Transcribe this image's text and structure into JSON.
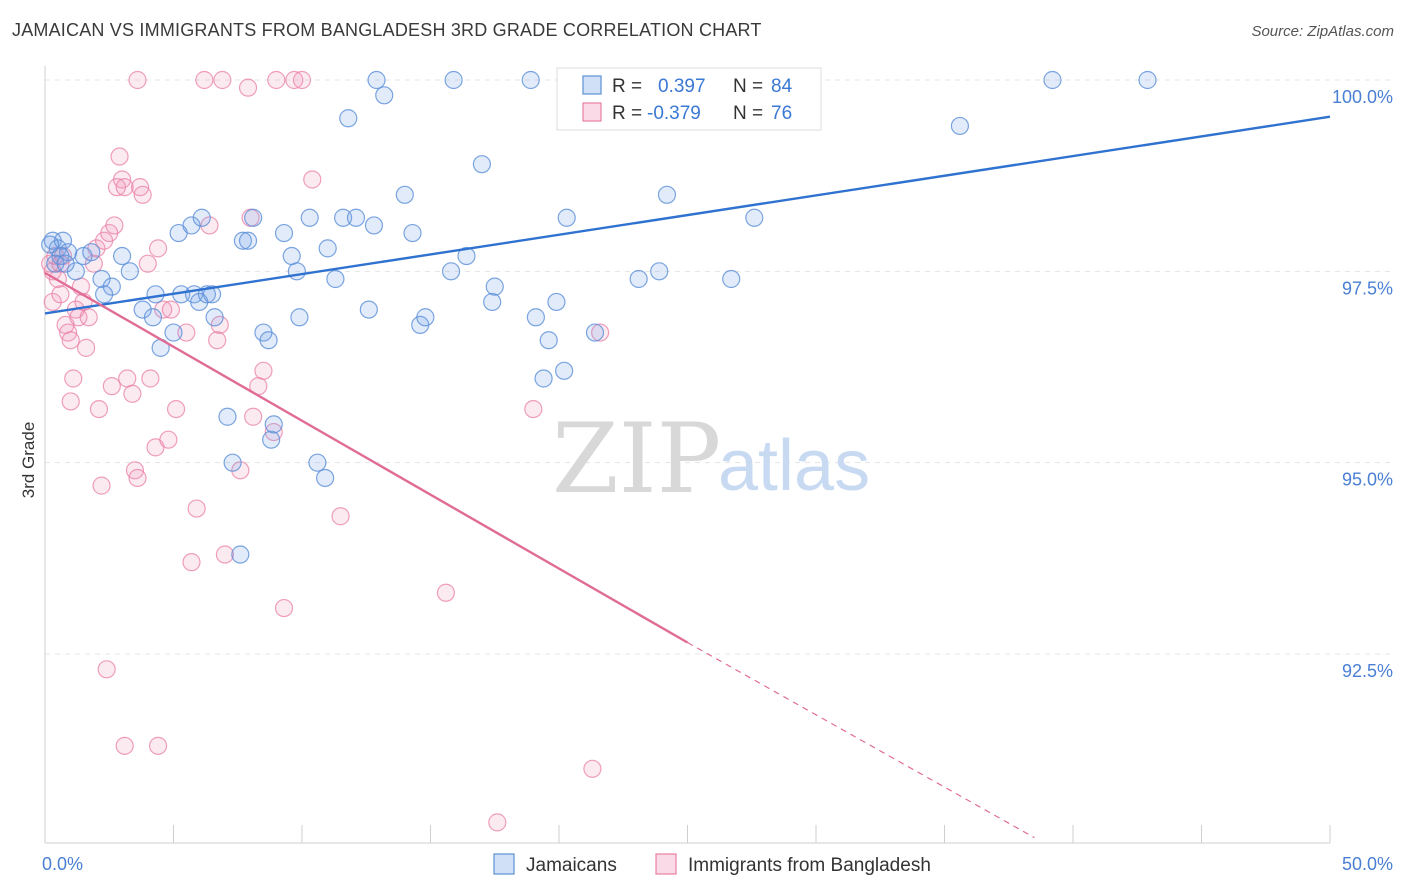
{
  "title": "JAMAICAN VS IMMIGRANTS FROM BANGLADESH 3RD GRADE CORRELATION CHART",
  "source": "Source: ZipAtlas.com",
  "watermark": {
    "zip": "ZIP",
    "atlas": "atlas"
  },
  "colors": {
    "blue": "#5b8fd8",
    "blue_fill": "rgba(120,165,230,0.22)",
    "blue_line": "#2f72cf",
    "pink": "#e97fa5",
    "pink_fill": "rgba(240,150,185,0.20)",
    "pink_line": "#e06c96",
    "grid": "#e4e4e4",
    "tick_text": "#4a7fd4"
  },
  "legend_top": {
    "rows": [
      {
        "r_label": "R =",
        "r_value": "0.397",
        "n_label": "N =",
        "n_value": "84"
      },
      {
        "r_label": "R =",
        "r_value": "-0.379",
        "n_label": "N =",
        "n_value": "76"
      }
    ]
  },
  "legend_bottom": {
    "series1": "Jamaicans",
    "series2": "Immigrants from Bangladesh"
  },
  "chart_data": {
    "type": "scatter",
    "title": "JAMAICAN VS IMMIGRANTS FROM BANGLADESH 3RD GRADE CORRELATION CHART",
    "xlabel": "",
    "ylabel": "3rd Grade",
    "xlim": [
      0,
      50
    ],
    "ylim": [
      90.1,
      100.2
    ],
    "x_tick_labels": [
      "0.0%",
      "50.0%"
    ],
    "y_ticks": [
      92.5,
      95.0,
      97.5,
      100.0
    ],
    "y_tick_labels": [
      "92.5%",
      "95.0%",
      "97.5%",
      "100.0%"
    ],
    "grid": true,
    "series": [
      {
        "name": "Jamaicans",
        "r": 0.397,
        "n": 84,
        "trend": {
          "x": [
            0,
            50
          ],
          "y": [
            96.95,
            99.52
          ]
        },
        "points": [
          [
            0.3,
            97.9
          ],
          [
            0.5,
            97.8
          ],
          [
            0.7,
            97.9
          ],
          [
            0.9,
            97.75
          ],
          [
            0.6,
            97.7
          ],
          [
            0.4,
            97.6
          ],
          [
            1.2,
            97.5
          ],
          [
            1.5,
            97.7
          ],
          [
            1.8,
            97.75
          ],
          [
            2.2,
            97.4
          ],
          [
            2.6,
            97.3
          ],
          [
            2.3,
            97.2
          ],
          [
            3.0,
            97.7
          ],
          [
            3.3,
            97.5
          ],
          [
            3.8,
            97.0
          ],
          [
            4.2,
            96.9
          ],
          [
            4.5,
            96.5
          ],
          [
            5.0,
            96.7
          ],
          [
            4.3,
            97.2
          ],
          [
            5.3,
            97.2
          ],
          [
            5.8,
            97.2
          ],
          [
            6.0,
            97.1
          ],
          [
            5.2,
            98.0
          ],
          [
            5.7,
            98.1
          ],
          [
            6.1,
            98.2
          ],
          [
            6.6,
            96.9
          ],
          [
            6.3,
            97.2
          ],
          [
            6.5,
            97.2
          ],
          [
            7.1,
            95.6
          ],
          [
            7.3,
            95.0
          ],
          [
            7.6,
            93.8
          ],
          [
            7.7,
            97.9
          ],
          [
            8.1,
            98.2
          ],
          [
            7.9,
            97.9
          ],
          [
            8.5,
            96.7
          ],
          [
            8.7,
            96.6
          ],
          [
            8.8,
            95.3
          ],
          [
            8.9,
            95.5
          ],
          [
            9.3,
            98.0
          ],
          [
            9.6,
            97.7
          ],
          [
            9.8,
            97.5
          ],
          [
            9.9,
            96.9
          ],
          [
            10.3,
            98.2
          ],
          [
            10.6,
            95.0
          ],
          [
            10.9,
            94.8
          ],
          [
            11.0,
            97.8
          ],
          [
            11.3,
            97.4
          ],
          [
            11.6,
            98.2
          ],
          [
            11.8,
            99.5
          ],
          [
            12.1,
            98.2
          ],
          [
            12.6,
            97.0
          ],
          [
            12.8,
            98.1
          ],
          [
            12.9,
            100.0
          ],
          [
            13.2,
            99.8
          ],
          [
            14.0,
            98.5
          ],
          [
            14.3,
            98.0
          ],
          [
            14.6,
            96.8
          ],
          [
            14.8,
            96.9
          ],
          [
            15.9,
            100.0
          ],
          [
            15.8,
            97.5
          ],
          [
            16.4,
            97.7
          ],
          [
            17.0,
            98.9
          ],
          [
            17.4,
            97.1
          ],
          [
            17.5,
            97.3
          ],
          [
            19.1,
            96.9
          ],
          [
            19.4,
            96.1
          ],
          [
            19.6,
            96.6
          ],
          [
            19.9,
            97.1
          ],
          [
            20.2,
            96.2
          ],
          [
            20.3,
            98.2
          ],
          [
            21.4,
            96.7
          ],
          [
            23.1,
            97.4
          ],
          [
            23.9,
            97.5
          ],
          [
            24.2,
            98.5
          ],
          [
            25.6,
            100.0
          ],
          [
            26.7,
            97.4
          ],
          [
            27.6,
            98.2
          ],
          [
            35.6,
            99.4
          ],
          [
            39.2,
            100.0
          ],
          [
            42.9,
            100.0
          ],
          [
            20.5,
            100.0
          ],
          [
            18.9,
            100.0
          ],
          [
            0.2,
            97.85
          ],
          [
            0.8,
            97.6
          ]
        ]
      },
      {
        "name": "Immigrants from Bangladesh",
        "r": -0.379,
        "n": 76,
        "trend": {
          "x": [
            0,
            25
          ],
          "y": [
            97.48,
            92.65
          ]
        },
        "trend_dashed": {
          "x": [
            25,
            38.5
          ],
          "y": [
            92.65,
            90.1
          ]
        },
        "points": [
          [
            0.2,
            97.6
          ],
          [
            0.3,
            97.5
          ],
          [
            0.4,
            97.7
          ],
          [
            0.5,
            97.4
          ],
          [
            0.6,
            97.6
          ],
          [
            0.7,
            97.7
          ],
          [
            0.8,
            96.8
          ],
          [
            0.9,
            96.7
          ],
          [
            1.0,
            95.8
          ],
          [
            1.1,
            96.1
          ],
          [
            1.2,
            97.0
          ],
          [
            1.3,
            96.9
          ],
          [
            1.4,
            97.3
          ],
          [
            1.6,
            96.5
          ],
          [
            1.7,
            96.9
          ],
          [
            1.9,
            97.6
          ],
          [
            2.0,
            97.8
          ],
          [
            2.1,
            95.7
          ],
          [
            2.2,
            94.7
          ],
          [
            2.3,
            97.9
          ],
          [
            2.5,
            98.0
          ],
          [
            2.6,
            96.0
          ],
          [
            2.7,
            98.1
          ],
          [
            2.8,
            98.6
          ],
          [
            2.9,
            99.0
          ],
          [
            3.0,
            98.7
          ],
          [
            3.1,
            98.6
          ],
          [
            3.2,
            96.1
          ],
          [
            3.4,
            95.9
          ],
          [
            3.5,
            94.9
          ],
          [
            3.6,
            94.8
          ],
          [
            3.7,
            98.6
          ],
          [
            3.8,
            98.5
          ],
          [
            4.0,
            97.6
          ],
          [
            4.1,
            96.1
          ],
          [
            4.3,
            95.2
          ],
          [
            4.4,
            97.8
          ],
          [
            4.6,
            97.0
          ],
          [
            4.8,
            95.3
          ],
          [
            4.9,
            97.0
          ],
          [
            5.1,
            95.7
          ],
          [
            5.5,
            96.7
          ],
          [
            5.9,
            94.4
          ],
          [
            6.4,
            98.1
          ],
          [
            6.7,
            96.6
          ],
          [
            6.8,
            96.8
          ],
          [
            7.0,
            93.8
          ],
          [
            7.6,
            94.9
          ],
          [
            7.9,
            99.9
          ],
          [
            8.0,
            98.2
          ],
          [
            8.1,
            95.6
          ],
          [
            8.3,
            96.0
          ],
          [
            8.5,
            96.2
          ],
          [
            8.9,
            95.4
          ],
          [
            9.3,
            93.1
          ],
          [
            9.7,
            100.0
          ],
          [
            10.0,
            100.0
          ],
          [
            10.4,
            98.7
          ],
          [
            11.5,
            94.3
          ],
          [
            2.4,
            92.3
          ],
          [
            3.1,
            91.3
          ],
          [
            4.4,
            91.3
          ],
          [
            15.6,
            93.3
          ],
          [
            17.6,
            90.3
          ],
          [
            21.3,
            91.0
          ],
          [
            21.6,
            96.7
          ],
          [
            0.3,
            97.1
          ],
          [
            1.5,
            97.1
          ],
          [
            5.7,
            93.7
          ],
          [
            3.6,
            100.0
          ],
          [
            6.2,
            100.0
          ],
          [
            6.9,
            100.0
          ],
          [
            9.0,
            100.0
          ],
          [
            19.0,
            95.7
          ],
          [
            0.6,
            97.2
          ],
          [
            1.0,
            96.6
          ]
        ]
      }
    ]
  }
}
